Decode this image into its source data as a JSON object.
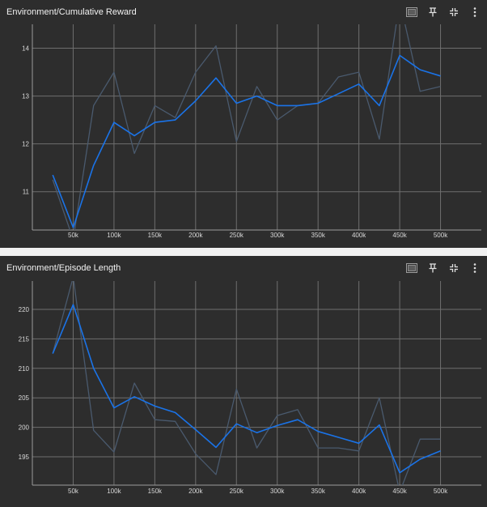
{
  "colors": {
    "page_bg": "#f1f1f1",
    "card_bg": "#2d2d2d",
    "grid": "#6e6e6e",
    "axis": "#9a9a9a",
    "raw_line": "#4a5a6e",
    "smoothed_line": "#1a73e8"
  },
  "icons": {
    "fit": "fit-to-screen-icon",
    "pin": "pin-icon",
    "collapse": "collapse-icon",
    "more": "more-vert-icon"
  },
  "chart_data": [
    {
      "type": "line",
      "title": "Environment/Cumulative Reward",
      "x_ticks": [
        50000,
        100000,
        150000,
        200000,
        250000,
        300000,
        350000,
        400000,
        450000,
        500000
      ],
      "x_tick_labels": [
        "50k",
        "100k",
        "150k",
        "200k",
        "250k",
        "300k",
        "350k",
        "400k",
        "450k",
        "500k"
      ],
      "y_ticks": [
        11,
        12,
        13,
        14
      ],
      "xlim": [
        0,
        550000
      ],
      "ylim": [
        10.2,
        14.5
      ],
      "grid": true,
      "series": [
        {
          "style": "raw",
          "x": [
            25000,
            50000,
            75000,
            100000,
            125000,
            150000,
            175000,
            200000,
            225000,
            250000,
            275000,
            300000,
            325000,
            350000,
            375000,
            400000,
            425000,
            450000,
            475000,
            500000
          ],
          "y": [
            11.25,
            10.0,
            12.8,
            13.5,
            11.8,
            12.8,
            12.55,
            13.5,
            14.05,
            12.05,
            13.2,
            12.5,
            12.8,
            12.85,
            13.4,
            13.5,
            12.1,
            15.0,
            13.1,
            13.2
          ]
        },
        {
          "style": "smoothed",
          "x": [
            25000,
            50000,
            75000,
            100000,
            125000,
            150000,
            175000,
            200000,
            225000,
            250000,
            275000,
            300000,
            325000,
            350000,
            375000,
            400000,
            425000,
            450000,
            475000,
            500000
          ],
          "y": [
            11.35,
            10.25,
            11.55,
            12.45,
            12.17,
            12.45,
            12.5,
            12.9,
            13.38,
            12.85,
            13.0,
            12.8,
            12.8,
            12.85,
            13.05,
            13.25,
            12.8,
            13.85,
            13.55,
            13.42
          ]
        }
      ]
    },
    {
      "type": "line",
      "title": "Environment/Episode Length",
      "x_ticks": [
        50000,
        100000,
        150000,
        200000,
        250000,
        300000,
        350000,
        400000,
        450000,
        500000
      ],
      "x_tick_labels": [
        "50k",
        "100k",
        "150k",
        "200k",
        "250k",
        "300k",
        "350k",
        "400k",
        "450k",
        "500k"
      ],
      "y_ticks": [
        195,
        200,
        205,
        210,
        215,
        220
      ],
      "xlim": [
        0,
        550000
      ],
      "ylim": [
        190.2,
        224.8
      ],
      "grid": true,
      "series": [
        {
          "style": "raw",
          "x": [
            25000,
            50000,
            75000,
            100000,
            125000,
            150000,
            175000,
            200000,
            225000,
            250000,
            275000,
            300000,
            325000,
            350000,
            375000,
            400000,
            425000,
            450000,
            475000,
            500000
          ],
          "y": [
            212.5,
            225.5,
            199.5,
            195.8,
            207.5,
            201.3,
            201.0,
            195.5,
            192.0,
            206.5,
            196.5,
            202.0,
            203.0,
            196.5,
            196.5,
            196.0,
            205.0,
            189.0,
            198.0,
            198.0
          ]
        },
        {
          "style": "smoothed",
          "x": [
            25000,
            50000,
            75000,
            100000,
            125000,
            150000,
            175000,
            200000,
            225000,
            250000,
            275000,
            300000,
            325000,
            350000,
            375000,
            400000,
            425000,
            450000,
            475000,
            500000
          ],
          "y": [
            212.5,
            220.8,
            210.0,
            203.3,
            205.2,
            203.6,
            202.5,
            199.6,
            196.6,
            200.6,
            199.1,
            200.3,
            201.3,
            199.3,
            198.3,
            197.3,
            200.4,
            192.3,
            194.6,
            196.0
          ]
        }
      ]
    }
  ]
}
